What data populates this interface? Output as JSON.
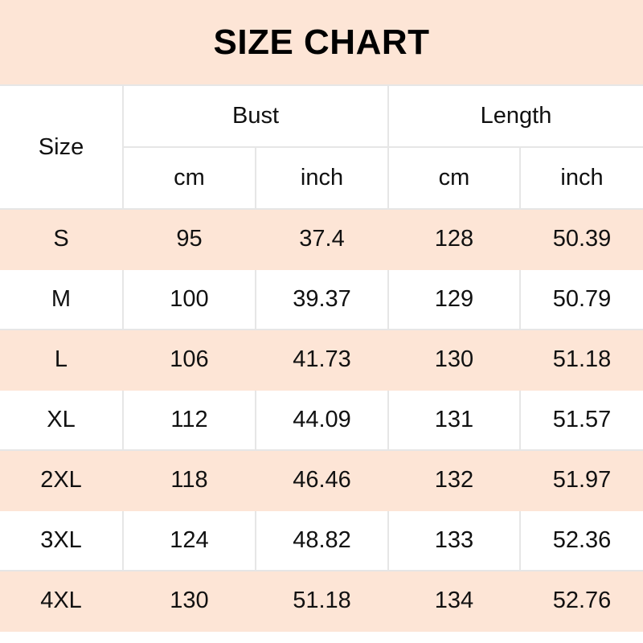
{
  "title": "SIZE CHART",
  "header": {
    "size": "Size",
    "bust": "Bust",
    "length": "Length",
    "units": [
      "cm",
      "inch",
      "cm",
      "inch"
    ]
  },
  "rows": [
    [
      "S",
      "95",
      "37.4",
      "128",
      "50.39"
    ],
    [
      "M",
      "100",
      "39.37",
      "129",
      "50.79"
    ],
    [
      "L",
      "106",
      "41.73",
      "130",
      "51.18"
    ],
    [
      "XL",
      "112",
      "44.09",
      "131",
      "51.57"
    ],
    [
      "2XL",
      "118",
      "46.46",
      "132",
      "51.97"
    ],
    [
      "3XL",
      "124",
      "48.82",
      "133",
      "52.36"
    ],
    [
      "4XL",
      "130",
      "51.18",
      "134",
      "52.76"
    ]
  ],
  "colors": {
    "band": "#fde5d6",
    "grid": "#e6e6e6"
  }
}
